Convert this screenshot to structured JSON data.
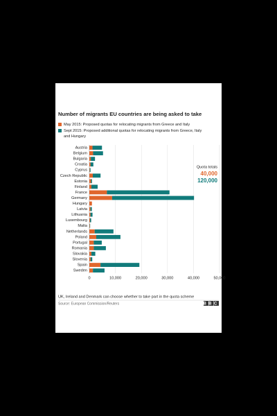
{
  "chart_data": {
    "type": "stacked-bar-horizontal",
    "title": "Number of migrants EU countries are being asked to take",
    "categories": [
      "Austria",
      "Belgium",
      "Bulgaria",
      "Croatia",
      "Cyprus",
      "Czech Republic",
      "Estonia",
      "Finland",
      "France",
      "Germany",
      "Hungary",
      "Latvia",
      "Lithuania",
      "Luxembourg",
      "Malta",
      "Netherlands",
      "Poland",
      "Portugal",
      "Romania",
      "Slovakia",
      "Slovenia",
      "Spain",
      "Sweden"
    ],
    "series": [
      {
        "name": "May 2015: Proposed quotas for relocating migrants from Greece and Italy",
        "color": "#e0662c",
        "values": [
          1213,
          1448,
          572,
          480,
          173,
          1328,
          652,
          792,
          6752,
          8763,
          1000,
          438,
          440,
          257,
          173,
          2047,
          2659,
          1701,
          1705,
          785,
          495,
          4288,
          1369
        ]
      },
      {
        "name": "Sept 2015: Proposed additional quotas for relocating migrants from Greece, Italy and Hungary",
        "color": "#117b7b",
        "values": [
          3640,
          3812,
          1600,
          1064,
          274,
          2978,
          373,
          2398,
          24031,
          31443,
          0,
          526,
          780,
          440,
          133,
          7214,
          9287,
          3074,
          4646,
          1502,
          631,
          14931,
          4469
        ]
      }
    ],
    "xlim": [
      0,
      50000
    ],
    "xticks": [
      0,
      {
        "value": 10000,
        "label": "10,000"
      },
      {
        "value": 20000,
        "label": "20,000"
      },
      {
        "value": 30000,
        "label": "30,000"
      },
      {
        "value": 40000,
        "label": "40,000"
      },
      {
        "value": 50000,
        "label": "50,000"
      }
    ],
    "quota_totals": {
      "title": "Quota totals",
      "items": [
        {
          "label": "40,000",
          "color": "#e0662c"
        },
        {
          "label": "120,000",
          "color": "#117b7b"
        }
      ]
    },
    "footnote": "UK, Ireland and Denmark can choose whether to take part in the quota scheme",
    "source": "Source: European Commission/Reuters",
    "logo": "BBC"
  }
}
